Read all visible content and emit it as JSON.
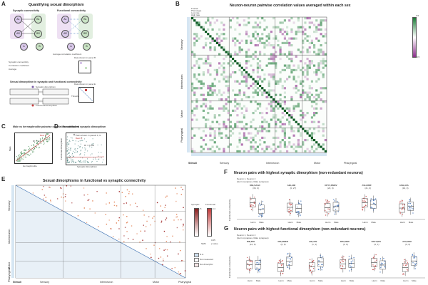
{
  "panelA": {
    "letter": "A",
    "title": "Quantifying sexual dimorphism",
    "col1": "Synaptic connectivity",
    "col2": "Functional connectivity",
    "nodes": [
      "AL",
      "BL",
      "AR",
      "BR"
    ],
    "nodeA": "A",
    "nodeB": "B",
    "legend": [
      "Synaptic connectivity",
      "Correlation coefficient",
      "Average"
    ],
    "avg_label": "Average correlation coefficient",
    "data_label_B": "Data shown in panel B",
    "section2": "Sexual dimorphism in synaptic and functional connectivity",
    "synaptic_dimorphism": "Synaptic dimorphism",
    "threshold": "Threshold",
    "functional_dimorphism": "Functional dimorphism",
    "data_label_E": "Data shown in panel E"
  },
  "panelB": {
    "letter": "B",
    "title": "Neuron-neuron pairwise correlation values averaged within each sex",
    "row_header": [
      "Frontal",
      "Phenotype",
      "Low rate",
      "High rate"
    ],
    "groups": [
      "Sensory",
      "Interneuron",
      "Motor",
      "Pharyngeal"
    ],
    "stimuli_label": "Stimuli",
    "colorbar_top": "0.5",
    "colorbar_bottom": "-0.5",
    "colors": {
      "positive": "#1a7a35",
      "negative": "#8a2d8a",
      "mid": "#ffffff"
    }
  },
  "panelC": {
    "letter": "C",
    "title": "Male vs hermaphrodite pairwise correlation coefficient",
    "r2": "R² = 0.4",
    "xlabel": "Hermaphrodite",
    "ylabel": "Male",
    "legend": "Best fit"
  },
  "panelD": {
    "letter": "D",
    "title": "Functional vs synaptic dimorphism",
    "legend1": "Pairs shown in panels F, G",
    "legend2": "Best fit",
    "r2": "R² = 0.003",
    "xlabel": "Synaptic dimorphism",
    "ylabel": "Functional dimorphism"
  },
  "panelE": {
    "letter": "E",
    "title": "Sexual dimorphisms in functional vs synaptic connectivity",
    "groups": [
      "Sensory",
      "Interneuron",
      "Motor",
      "Pharyngeal"
    ],
    "stimuli": "Stimuli",
    "cb_synaptic": "Synaptic",
    "cb_functional": "Functional",
    "cb_top": "+5",
    "cb_top2": "+0.4",
    "cb_mid_s": "Male",
    "cb_bot_s": "Herm",
    "legend": [
      "N.A.",
      "Not measured",
      "Not dimorphic"
    ],
    "sem_label": "SEM",
    "ptest": "p value",
    "ptest_val": "0.05"
  },
  "panelF": {
    "letter": "F",
    "title": "Neuron pairs with highest synaptic dimorphism (non-redundant neurons)",
    "subtitle1": "Neuron 1, Neuron 2",
    "subtitle2": "(Herm synapses, Male synapses)",
    "pairs": [
      {
        "name": "RIB,SAAD",
        "syn": "(36, 0)"
      },
      {
        "name": "AIB,AIM",
        "syn": "(0, 27)"
      },
      {
        "name": "URYV,RMDV",
        "syn": "(23, 0)"
      },
      {
        "name": "AVH,RMF",
        "syn": "(21, 0)"
      },
      {
        "name": "ASH,AVA",
        "syn": "(19, 0)"
      }
    ],
    "ylabel": "Functional connectivity",
    "xlabels": [
      "Herm",
      "Male"
    ]
  },
  "panelG": {
    "letter": "G",
    "title": "Neuron pairs with highest functional dimorphism (non-redundant neurons)",
    "subtitle1": "Neuron 1, Neuron 2",
    "subtitle2": "(Herm synapses, Male synapses)",
    "pairs": [
      {
        "name": "RIB,RIH",
        "syn": "(12, 0)"
      },
      {
        "name": "RIS,RMED",
        "syn": "(0, 0)"
      },
      {
        "name": "AIB,AIN",
        "syn": "(1, 1)"
      },
      {
        "name": "RIS,SIBD",
        "syn": "(3, 0)"
      },
      {
        "name": "URYV,RIV",
        "syn": "(0, 1)"
      },
      {
        "name": "AVG,RIM",
        "syn": "(0, 0)"
      }
    ],
    "ylabel": "Functional connectivity",
    "xlabels": [
      "Herm",
      "Male"
    ]
  }
}
